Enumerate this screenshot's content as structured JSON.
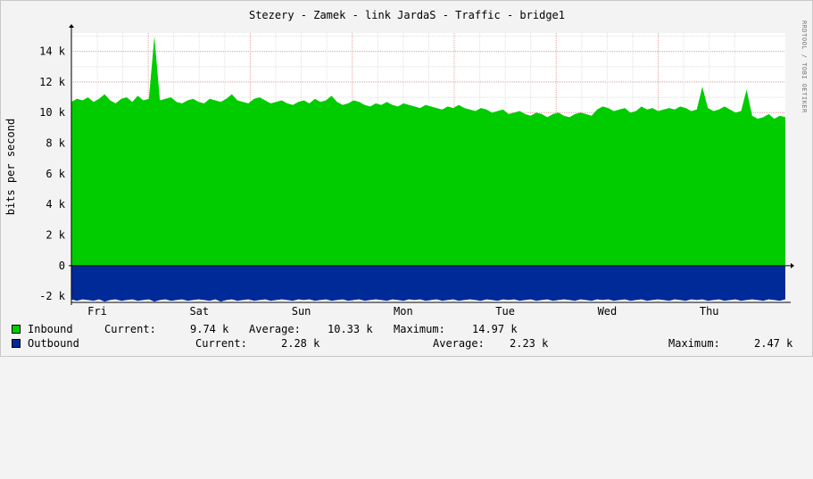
{
  "title": "Stezery - Zamek - link JardaS - Traffic - bridge1",
  "watermark": "RRDTOOL / TOBI OETIKER",
  "colors": {
    "inbound": "#00cc00",
    "outbound": "#002a97",
    "grid_minor": "#dedede",
    "grid_major": "#e8a0a0",
    "plot_bg": "#ffffff"
  },
  "chart_data": {
    "type": "area",
    "ylabel": "bits per second",
    "ylim": [
      -2400,
      15200
    ],
    "y_ticks": [
      {
        "value": 14000,
        "label": "14 k"
      },
      {
        "value": 12000,
        "label": "12 k"
      },
      {
        "value": 10000,
        "label": "10 k"
      },
      {
        "value": 8000,
        "label": "8 k"
      },
      {
        "value": 6000,
        "label": "6 k"
      },
      {
        "value": 4000,
        "label": "4 k"
      },
      {
        "value": 2000,
        "label": "2 k"
      },
      {
        "value": 0,
        "label": "0"
      },
      {
        "value": -2000,
        "label": "-2 k"
      }
    ],
    "x_day_labels": [
      "Fri",
      "Sat",
      "Sun",
      "Mon",
      "Tue",
      "Wed",
      "Thu"
    ],
    "series": [
      {
        "name": "Inbound",
        "values": [
          10700,
          10900,
          10800,
          11000,
          10700,
          10900,
          11200,
          10800,
          10600,
          10900,
          11000,
          10700,
          11100,
          10800,
          10900,
          14970,
          10800,
          10900,
          11000,
          10700,
          10600,
          10800,
          10900,
          10700,
          10600,
          10900,
          10800,
          10700,
          10900,
          11200,
          10800,
          10700,
          10600,
          10900,
          11000,
          10800,
          10600,
          10700,
          10800,
          10600,
          10500,
          10700,
          10800,
          10600,
          10900,
          10700,
          10800,
          11100,
          10700,
          10500,
          10600,
          10800,
          10700,
          10500,
          10400,
          10600,
          10500,
          10700,
          10500,
          10400,
          10600,
          10500,
          10400,
          10300,
          10500,
          10400,
          10300,
          10200,
          10400,
          10300,
          10500,
          10300,
          10200,
          10100,
          10300,
          10200,
          10000,
          10100,
          10200,
          9900,
          10000,
          10100,
          9900,
          9800,
          10000,
          9900,
          9700,
          9900,
          10000,
          9800,
          9700,
          9900,
          10000,
          9900,
          9800,
          10200,
          10400,
          10300,
          10100,
          10200,
          10300,
          10000,
          10100,
          10400,
          10200,
          10300,
          10100,
          10200,
          10300,
          10200,
          10400,
          10300,
          10100,
          10200,
          11700,
          10300,
          10100,
          10200,
          10400,
          10200,
          10000,
          10100,
          11500,
          9800,
          9600,
          9700,
          9900,
          9600,
          9800,
          9700
        ],
        "min": 9500
      },
      {
        "name": "Outbound",
        "values": [
          -2200,
          -2300,
          -2200,
          -2250,
          -2300,
          -2200,
          -2350,
          -2250,
          -2200,
          -2300,
          -2250,
          -2200,
          -2300,
          -2250,
          -2200,
          -2350,
          -2250,
          -2200,
          -2300,
          -2250,
          -2200,
          -2300,
          -2250,
          -2200,
          -2250,
          -2300,
          -2200,
          -2350,
          -2250,
          -2200,
          -2300,
          -2250,
          -2200,
          -2300,
          -2250,
          -2200,
          -2300,
          -2250,
          -2200,
          -2250,
          -2300,
          -2200,
          -2250,
          -2200,
          -2300,
          -2250,
          -2200,
          -2300,
          -2250,
          -2200,
          -2300,
          -2250,
          -2200,
          -2300,
          -2250,
          -2200,
          -2250,
          -2300,
          -2200,
          -2250,
          -2300,
          -2200,
          -2250,
          -2200,
          -2300,
          -2250,
          -2200,
          -2300,
          -2250,
          -2200,
          -2300,
          -2250,
          -2200,
          -2250,
          -2300,
          -2200,
          -2250,
          -2300,
          -2200,
          -2250,
          -2200,
          -2300,
          -2250,
          -2200,
          -2300,
          -2250,
          -2200,
          -2300,
          -2250,
          -2200,
          -2250,
          -2300,
          -2200,
          -2250,
          -2300,
          -2200,
          -2250,
          -2200,
          -2300,
          -2250,
          -2200,
          -2300,
          -2250,
          -2200,
          -2300,
          -2250,
          -2200,
          -2250,
          -2300,
          -2200,
          -2250,
          -2300,
          -2200,
          -2250,
          -2200,
          -2300,
          -2250,
          -2200,
          -2300,
          -2250,
          -2200,
          -2300,
          -2250,
          -2200,
          -2250,
          -2300,
          -2200,
          -2250,
          -2300,
          -2200
        ]
      }
    ],
    "grid": true
  },
  "legend": {
    "inbound": {
      "name": "Inbound",
      "current_label": "Current:",
      "current_value": "9.74 k",
      "average_label": "Average:",
      "average_value": "10.33 k",
      "maximum_label": "Maximum:",
      "maximum_value": "14.97 k"
    },
    "outbound": {
      "name": "Outbound",
      "current_label": "Current:",
      "current_value": "2.28 k",
      "average_label": "Average:",
      "average_value": "2.23 k",
      "maximum_label": "Maximum:",
      "maximum_value": "2.47 k"
    }
  }
}
